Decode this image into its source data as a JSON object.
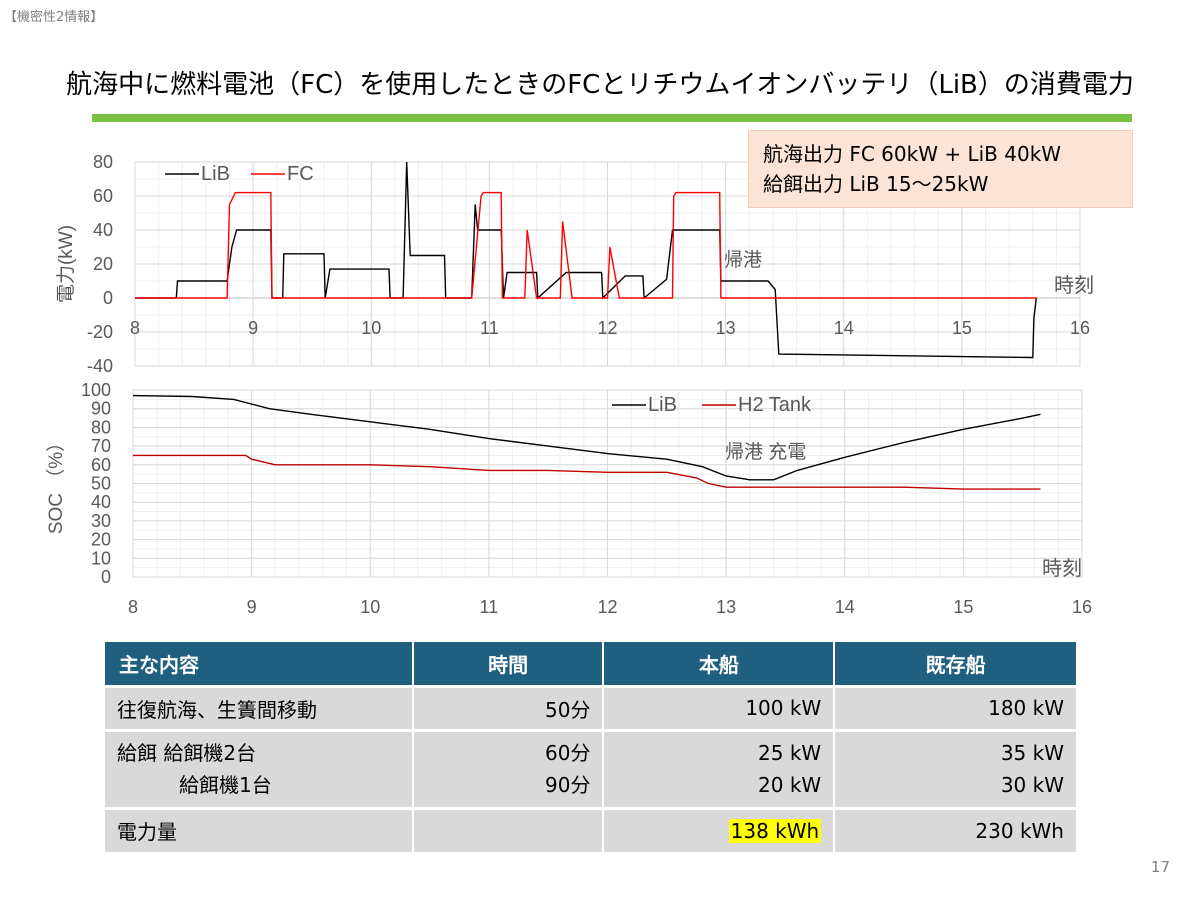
{
  "confidentiality": "【機密性2情報】",
  "title": "航海中に燃料電池（FC）を使用したときのFCとリチウムイオンバッテリ（LiB）の消費電力",
  "callout": {
    "line1": "航海出力  FC 60kW + LiB 40kW",
    "line2": "給餌出力  LiB 15〜25kW"
  },
  "chart_data": [
    {
      "type": "line",
      "ylabel": "電力(kW)",
      "xlabel": "時刻",
      "xlim": [
        8,
        16
      ],
      "ylim": [
        -40,
        80
      ],
      "x_ticks": [
        "8",
        "9",
        "10",
        "11",
        "12",
        "13",
        "14",
        "15",
        "16"
      ],
      "y_ticks": [
        "80",
        "60",
        "40",
        "20",
        "0",
        "-20",
        "-40"
      ],
      "grid": true,
      "legend_position": "top-left",
      "annotation": "帰港",
      "series": [
        {
          "name": "LiB",
          "color": "#000000",
          "x": [
            8.0,
            8.35,
            8.36,
            8.55,
            8.56,
            8.78,
            8.82,
            8.86,
            9.15,
            9.16,
            9.25,
            9.26,
            9.6,
            9.61,
            9.65,
            9.66,
            10.15,
            10.16,
            10.27,
            10.3,
            10.33,
            10.4,
            10.41,
            10.62,
            10.63,
            10.85,
            10.88,
            10.9,
            11.1,
            11.12,
            11.15,
            11.16,
            11.4,
            11.41,
            11.65,
            11.66,
            11.95,
            11.96,
            12.15,
            12.16,
            12.3,
            12.31,
            12.5,
            12.55,
            12.95,
            12.96,
            13.35,
            13.36,
            13.42,
            13.45,
            15.6,
            15.61,
            15.63
          ],
          "y": [
            0,
            0,
            10,
            10,
            10,
            10,
            30,
            40,
            40,
            0,
            0,
            26,
            26,
            0,
            17,
            17,
            17,
            0,
            0,
            80,
            25,
            25,
            25,
            25,
            0,
            0,
            55,
            40,
            40,
            0,
            15,
            15,
            15,
            0,
            15,
            15,
            15,
            0,
            13,
            13,
            13,
            0,
            11,
            40,
            40,
            10,
            10,
            10,
            5,
            -33,
            -35,
            -12,
            0
          ]
        },
        {
          "name": "FC",
          "color": "#ff0000",
          "x": [
            8.0,
            8.78,
            8.8,
            8.85,
            9.15,
            9.16,
            9.35,
            9.5,
            9.6,
            9.7,
            10.05,
            10.1,
            10.2,
            10.25,
            10.35,
            10.85,
            10.93,
            10.95,
            11.1,
            11.11,
            11.3,
            11.32,
            11.4,
            11.6,
            11.62,
            11.7,
            12.0,
            12.02,
            12.1,
            12.55,
            12.56,
            12.58,
            12.95,
            12.96,
            15.63
          ],
          "y": [
            0,
            0,
            55,
            62,
            62,
            0,
            0,
            0,
            0,
            0,
            0,
            0,
            0,
            0,
            0,
            0,
            60,
            62,
            62,
            0,
            0,
            40,
            0,
            0,
            45,
            0,
            0,
            30,
            0,
            0,
            60,
            62,
            62,
            0,
            0
          ]
        }
      ]
    },
    {
      "type": "line",
      "ylabel": "SOC （%）",
      "xlabel": "時刻",
      "xlim": [
        8,
        16
      ],
      "ylim": [
        0,
        100
      ],
      "x_ticks": [
        "8",
        "9",
        "10",
        "11",
        "12",
        "13",
        "14",
        "15",
        "16"
      ],
      "y_ticks": [
        "100",
        "90",
        "80",
        "70",
        "60",
        "50",
        "40",
        "30",
        "20",
        "10",
        "0"
      ],
      "grid": true,
      "legend_position": "top-right",
      "annotation": "帰港  充電",
      "series": [
        {
          "name": "LiB",
          "color": "#000000",
          "x": [
            8.0,
            8.5,
            8.85,
            9.15,
            9.5,
            10.0,
            10.5,
            11.0,
            11.5,
            12.0,
            12.5,
            12.8,
            13.0,
            13.2,
            13.4,
            13.6,
            14.0,
            14.5,
            15.0,
            15.5,
            15.65
          ],
          "y": [
            97,
            96.5,
            95,
            90,
            87,
            83,
            79,
            74,
            70,
            66,
            63,
            59,
            54,
            52,
            52,
            57,
            64,
            72,
            79,
            85,
            87
          ]
        },
        {
          "name": "H2 Tank",
          "color": "#c00000",
          "x": [
            8.0,
            8.5,
            8.95,
            9.0,
            9.2,
            9.5,
            10.0,
            10.5,
            11.0,
            11.5,
            12.0,
            12.5,
            12.75,
            12.85,
            13.0,
            13.5,
            14.0,
            14.5,
            15.0,
            15.5,
            15.65
          ],
          "y": [
            65,
            65,
            65,
            63,
            60,
            60,
            60,
            59,
            57,
            57,
            56,
            56,
            53,
            50,
            48,
            48,
            48,
            48,
            47,
            47,
            47
          ]
        }
      ]
    }
  ],
  "table": {
    "headers": [
      "主な内容",
      "時間",
      "本船",
      "既存船"
    ],
    "rows": [
      {
        "item": "往復航海、生簀間移動",
        "time": "50分",
        "ship": "100 kW",
        "existing": "180 kW"
      },
      {
        "item_line1": "給餌 給餌機2台",
        "item_line2": "給餌機1台",
        "time_line1": "60分",
        "time_line2": "90分",
        "ship_line1": "25 kW",
        "ship_line2": "20 kW",
        "existing_line1": "35 kW",
        "existing_line2": "30 kW"
      },
      {
        "item": "電力量",
        "time": "",
        "ship": "138 kWh",
        "existing": "230 kWh"
      }
    ]
  },
  "page_number": "17"
}
